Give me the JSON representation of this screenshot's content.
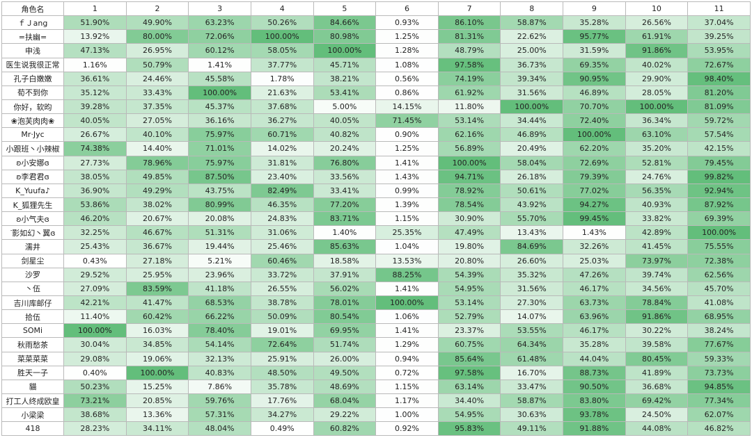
{
  "table": {
    "corner": "角色名",
    "columns": [
      "1",
      "2",
      "3",
      "4",
      "5",
      "6",
      "7",
      "8",
      "9",
      "10",
      "11"
    ],
    "rows": [
      {
        "name": "ｆＪang",
        "values": [
          "51.90%",
          "49.90%",
          "63.23%",
          "50.26%",
          "84.66%",
          "0.93%",
          "86.10%",
          "58.87%",
          "35.28%",
          "26.56%",
          "37.04%"
        ]
      },
      {
        "name": "=扶幽=",
        "values": [
          "13.92%",
          "80.00%",
          "72.06%",
          "100.00%",
          "80.98%",
          "1.25%",
          "81.31%",
          "22.62%",
          "95.77%",
          "61.91%",
          "39.25%"
        ]
      },
      {
        "name": "申浅",
        "values": [
          "47.13%",
          "26.95%",
          "60.12%",
          "58.05%",
          "100.00%",
          "1.28%",
          "48.79%",
          "25.00%",
          "31.59%",
          "91.86%",
          "53.95%"
        ]
      },
      {
        "name": "医生说我很正常",
        "values": [
          "1.16%",
          "50.79%",
          "1.41%",
          "37.77%",
          "45.71%",
          "1.08%",
          "97.58%",
          "36.73%",
          "69.35%",
          "40.02%",
          "72.67%"
        ]
      },
      {
        "name": "孔子白嫩嫩",
        "values": [
          "36.61%",
          "24.46%",
          "45.58%",
          "1.78%",
          "38.21%",
          "0.56%",
          "74.19%",
          "39.34%",
          "90.95%",
          "29.90%",
          "98.40%"
        ]
      },
      {
        "name": "荀不到你",
        "values": [
          "35.12%",
          "33.43%",
          "100.00%",
          "21.63%",
          "53.41%",
          "0.86%",
          "61.92%",
          "31.56%",
          "46.89%",
          "28.05%",
          "81.20%"
        ]
      },
      {
        "name": "你好，软昀",
        "values": [
          "39.28%",
          "37.35%",
          "45.37%",
          "37.68%",
          "5.00%",
          "14.15%",
          "11.80%",
          "100.00%",
          "70.70%",
          "100.00%",
          "81.09%"
        ]
      },
      {
        "name": "❀泡芙肉肉❀",
        "values": [
          "40.05%",
          "27.05%",
          "36.16%",
          "36.27%",
          "40.05%",
          "71.45%",
          "53.14%",
          "34.44%",
          "72.40%",
          "36.34%",
          "59.72%"
        ]
      },
      {
        "name": "Mr·Jyc",
        "values": [
          "26.67%",
          "40.10%",
          "75.97%",
          "60.71%",
          "40.82%",
          "0.90%",
          "62.16%",
          "46.89%",
          "100.00%",
          "63.10%",
          "57.54%"
        ]
      },
      {
        "name": "小跟班丶小辣椒",
        "values": [
          "74.38%",
          "14.40%",
          "71.01%",
          "14.02%",
          "20.24%",
          "1.25%",
          "56.89%",
          "20.49%",
          "62.20%",
          "35.20%",
          "42.15%"
        ]
      },
      {
        "name": "ʚ小安娜ɞ",
        "values": [
          "27.73%",
          "78.96%",
          "75.97%",
          "31.81%",
          "76.80%",
          "1.41%",
          "100.00%",
          "58.04%",
          "72.69%",
          "52.81%",
          "79.45%"
        ]
      },
      {
        "name": "ʚ李君君ɞ",
        "values": [
          "38.05%",
          "49.85%",
          "87.50%",
          "23.40%",
          "33.56%",
          "1.43%",
          "94.71%",
          "26.18%",
          "79.39%",
          "24.76%",
          "99.82%"
        ]
      },
      {
        "name": "K_Yuufa♪",
        "values": [
          "36.90%",
          "49.29%",
          "43.75%",
          "82.49%",
          "33.41%",
          "0.99%",
          "78.92%",
          "50.61%",
          "77.02%",
          "56.35%",
          "92.94%"
        ]
      },
      {
        "name": "K_狐狸先生",
        "values": [
          "53.86%",
          "38.02%",
          "80.99%",
          "46.35%",
          "77.20%",
          "1.39%",
          "78.54%",
          "43.92%",
          "94.27%",
          "40.93%",
          "87.92%"
        ]
      },
      {
        "name": "ʚ小气夫ɞ",
        "values": [
          "46.20%",
          "20.67%",
          "20.08%",
          "24.83%",
          "83.71%",
          "1.15%",
          "30.90%",
          "55.70%",
          "99.45%",
          "33.82%",
          "69.39%"
        ]
      },
      {
        "name": "ᐝ影如幻丶翼ɞ",
        "values": [
          "32.25%",
          "46.67%",
          "51.31%",
          "31.06%",
          "1.40%",
          "25.35%",
          "47.49%",
          "13.43%",
          "1.43%",
          "42.89%",
          "100.00%"
        ]
      },
      {
        "name": "濡井",
        "values": [
          "25.43%",
          "36.67%",
          "19.44%",
          "25.46%",
          "85.63%",
          "1.04%",
          "19.80%",
          "84.69%",
          "32.26%",
          "41.45%",
          "75.55%"
        ]
      },
      {
        "name": "剑星尘",
        "values": [
          "0.43%",
          "27.18%",
          "5.21%",
          "60.46%",
          "18.58%",
          "13.53%",
          "20.80%",
          "26.60%",
          "25.03%",
          "73.97%",
          "72.38%"
        ]
      },
      {
        "name": "沙罗",
        "values": [
          "29.52%",
          "25.95%",
          "23.96%",
          "33.72%",
          "37.91%",
          "88.25%",
          "54.39%",
          "35.32%",
          "47.26%",
          "39.74%",
          "62.56%"
        ]
      },
      {
        "name": "丶伍",
        "values": [
          "27.09%",
          "83.59%",
          "41.18%",
          "26.55%",
          "56.02%",
          "1.41%",
          "54.95%",
          "31.56%",
          "46.17%",
          "34.56%",
          "45.70%"
        ]
      },
      {
        "name": "吉川库邮仔",
        "values": [
          "42.21%",
          "41.47%",
          "68.53%",
          "38.78%",
          "78.01%",
          "100.00%",
          "53.14%",
          "27.30%",
          "63.73%",
          "78.84%",
          "41.08%"
        ]
      },
      {
        "name": "拾伍",
        "values": [
          "11.40%",
          "60.42%",
          "66.22%",
          "50.09%",
          "80.54%",
          "1.06%",
          "52.79%",
          "14.07%",
          "63.96%",
          "91.86%",
          "68.95%"
        ]
      },
      {
        "name": "SOMi",
        "values": [
          "100.00%",
          "16.03%",
          "78.40%",
          "19.01%",
          "69.95%",
          "1.41%",
          "23.37%",
          "53.55%",
          "46.17%",
          "30.22%",
          "38.24%"
        ]
      },
      {
        "name": "秋雨愁茶",
        "values": [
          "30.04%",
          "34.85%",
          "54.14%",
          "72.64%",
          "51.74%",
          "1.29%",
          "60.75%",
          "64.34%",
          "35.28%",
          "39.58%",
          "77.67%"
        ]
      },
      {
        "name": "菜菜菜菜",
        "values": [
          "29.08%",
          "19.06%",
          "32.13%",
          "25.91%",
          "26.00%",
          "0.94%",
          "85.64%",
          "61.48%",
          "44.04%",
          "80.45%",
          "59.33%"
        ]
      },
      {
        "name": "胜天一子",
        "values": [
          "0.40%",
          "100.00%",
          "40.83%",
          "48.50%",
          "49.50%",
          "0.72%",
          "97.58%",
          "16.70%",
          "88.73%",
          "41.89%",
          "73.73%"
        ]
      },
      {
        "name": "貓",
        "values": [
          "50.23%",
          "15.25%",
          "7.86%",
          "35.78%",
          "48.69%",
          "1.15%",
          "63.14%",
          "33.47%",
          "90.50%",
          "36.68%",
          "94.85%"
        ]
      },
      {
        "name": "打工人终成欧皇",
        "values": [
          "73.21%",
          "20.85%",
          "59.76%",
          "17.76%",
          "68.04%",
          "1.17%",
          "34.40%",
          "58.87%",
          "83.80%",
          "69.42%",
          "77.34%"
        ]
      },
      {
        "name": "小梁梁",
        "values": [
          "38.68%",
          "13.36%",
          "57.31%",
          "34.27%",
          "29.22%",
          "1.00%",
          "54.95%",
          "30.63%",
          "93.78%",
          "24.50%",
          "62.07%"
        ]
      },
      {
        "name": "418",
        "values": [
          "28.23%",
          "34.11%",
          "48.04%",
          "0.49%",
          "60.82%",
          "0.92%",
          "95.83%",
          "49.11%",
          "91.88%",
          "44.08%",
          "46.82%"
        ]
      }
    ]
  },
  "colors": {
    "scale_low": "#ffffff",
    "scale_high": "#63be7b",
    "border": "#b9b9b9",
    "text": "#222222"
  }
}
